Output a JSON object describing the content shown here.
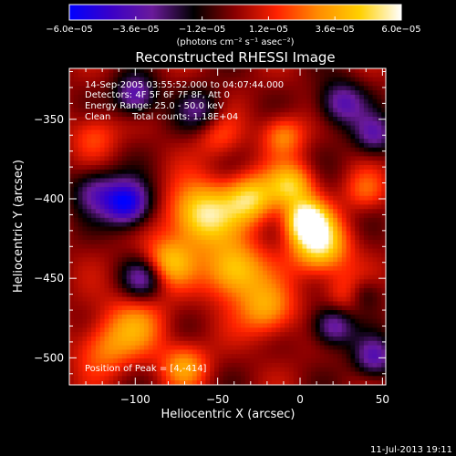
{
  "chart_data": {
    "type": "heatmap",
    "title": "Reconstructed RHESSI Image",
    "xlabel": "Heliocentric X (arcsec)",
    "ylabel": "Heliocentric Y (arcsec)",
    "xlim": [
      -140,
      52
    ],
    "ylim": [
      -517,
      -318
    ],
    "x_ticks": [
      -100,
      -50,
      0,
      50
    ],
    "x_tick_labels": [
      "−100",
      "−50",
      "0",
      "50"
    ],
    "y_ticks": [
      -350,
      -400,
      -450,
      -500
    ],
    "y_tick_labels": [
      "−350",
      "−400",
      "−450",
      "−500"
    ],
    "colorbar": {
      "range": [
        -6e-05,
        6e-05
      ],
      "ticks": [
        -6e-05,
        -3.6e-05,
        -1.2e-05,
        1.2e-05,
        3.6e-05,
        6e-05
      ],
      "tick_labels": [
        "−6.0e−05",
        "−3.6e−05",
        "−1.2e−05",
        "1.2e−05",
        "3.6e−05",
        "6.0e−05"
      ],
      "unit_label": "(photons cm⁻² s⁻¹ asec⁻²)",
      "colormap": [
        "#0000ff",
        "#3a00c8",
        "#6a1a9a",
        "#000000",
        "#8b0000",
        "#ff2200",
        "#ff8c00",
        "#ffd000",
        "#ffffff"
      ]
    },
    "annotations": {
      "time_range": "14-Sep-2005 03:55:52.000 to 04:07:44.000",
      "detectors": "Detectors: 4F 5F 6F 7F 8F, Att 0",
      "energy_range": "Energy Range: 25.0 - 50.0 keV",
      "clean_label": "Clean",
      "total_counts": "Total counts: 1.18E+04",
      "peak_position": "Position of Peak = [4,-414]"
    },
    "peak": {
      "x": 4,
      "y": -414
    },
    "hotspots": [
      {
        "x": -60,
        "y": -410,
        "amp": 5.5e-05,
        "sigma": 14
      },
      {
        "x": -30,
        "y": -400,
        "amp": 4.6e-05,
        "sigma": 11
      },
      {
        "x": -5,
        "y": -392,
        "amp": 4.2e-05,
        "sigma": 10
      },
      {
        "x": 4,
        "y": -414,
        "amp": 6e-05,
        "sigma": 9
      },
      {
        "x": 12,
        "y": -430,
        "amp": 5.2e-05,
        "sigma": 12
      },
      {
        "x": -40,
        "y": -445,
        "amp": 4.8e-05,
        "sigma": 13
      },
      {
        "x": -80,
        "y": -440,
        "amp": 3.8e-05,
        "sigma": 11
      },
      {
        "x": -20,
        "y": -470,
        "amp": 3.5e-05,
        "sigma": 12
      },
      {
        "x": 30,
        "y": -460,
        "amp": 2.6e-05,
        "sigma": 10
      },
      {
        "x": -100,
        "y": -480,
        "amp": 2.8e-05,
        "sigma": 14
      },
      {
        "x": -120,
        "y": -495,
        "amp": 2.4e-05,
        "sigma": 12
      },
      {
        "x": -10,
        "y": -360,
        "amp": 3e-05,
        "sigma": 9
      },
      {
        "x": -50,
        "y": -360,
        "amp": 2e-05,
        "sigma": 10
      },
      {
        "x": -125,
        "y": -360,
        "amp": 2e-05,
        "sigma": 10
      },
      {
        "x": -70,
        "y": -505,
        "amp": 3.2e-05,
        "sigma": 10
      },
      {
        "x": 40,
        "y": -395,
        "amp": 2.2e-05,
        "sigma": 9
      }
    ],
    "coldspots": [
      {
        "x": -105,
        "y": -403,
        "amp": -6e-05,
        "sigma": 10
      },
      {
        "x": -100,
        "y": -335,
        "amp": -4e-05,
        "sigma": 9
      },
      {
        "x": -125,
        "y": -395,
        "amp": -3e-05,
        "sigma": 10
      },
      {
        "x": -95,
        "y": -450,
        "amp": -3.5e-05,
        "sigma": 9
      },
      {
        "x": 25,
        "y": -340,
        "amp": -3.8e-05,
        "sigma": 10
      },
      {
        "x": 45,
        "y": -360,
        "amp": -3.2e-05,
        "sigma": 9
      },
      {
        "x": 20,
        "y": -480,
        "amp": -4e-05,
        "sigma": 9
      },
      {
        "x": 45,
        "y": -500,
        "amp": -3.6e-05,
        "sigma": 9
      },
      {
        "x": 38,
        "y": -460,
        "amp": -2.8e-05,
        "sigma": 8
      },
      {
        "x": -60,
        "y": -345,
        "amp": -2.6e-05,
        "sigma": 10
      }
    ]
  },
  "footer": {
    "timestamp": "11-Jul-2013 19:11"
  }
}
